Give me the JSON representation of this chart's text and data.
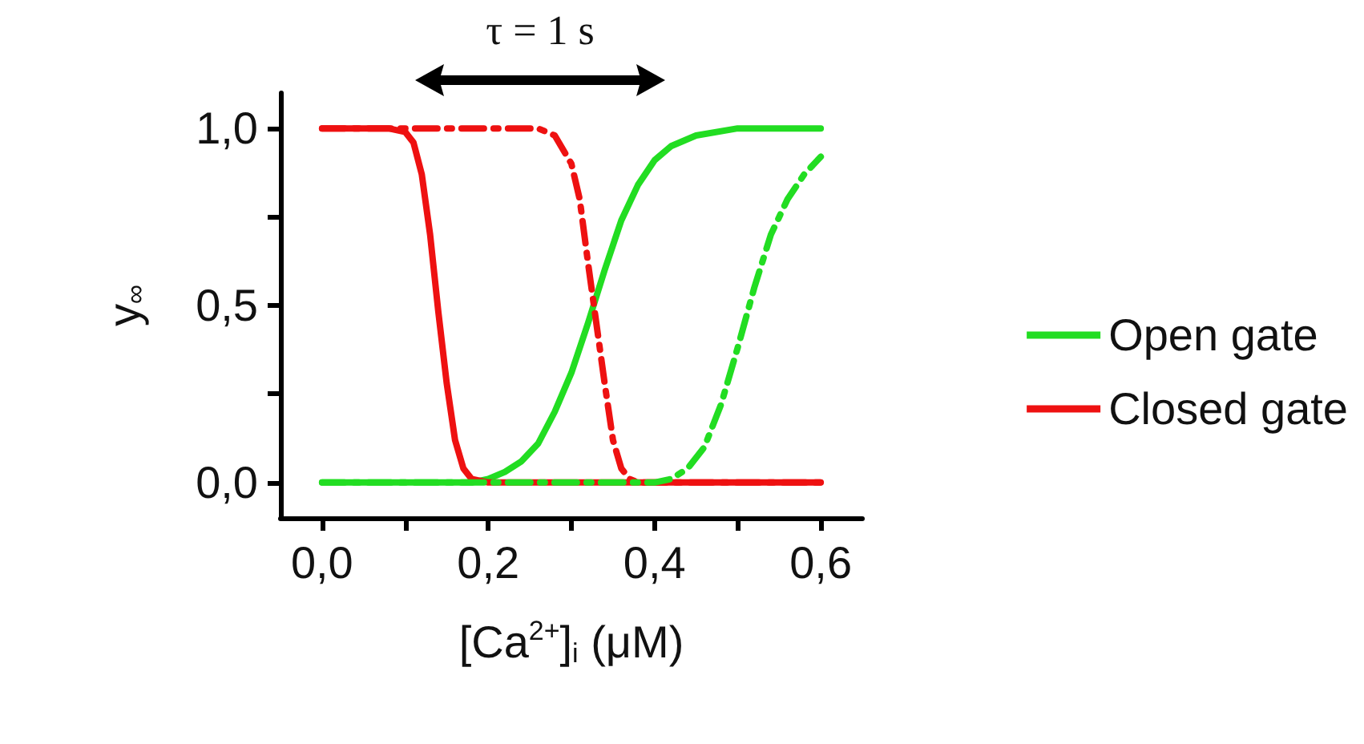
{
  "chart_data": {
    "type": "line",
    "xlabel": "[Ca$^{2+}$]$_{i}$ (μM)",
    "ylabel": "y$_{∞}$",
    "xlim": [
      -0.05,
      0.65
    ],
    "xticks": [
      {
        "value": 0,
        "label": "0,0"
      },
      {
        "value": 0.1,
        "label": null
      },
      {
        "value": 0.2,
        "label": "0,2"
      },
      {
        "value": 0.3,
        "label": null
      },
      {
        "value": 0.4,
        "label": "0,4"
      },
      {
        "value": 0.5,
        "label": null
      },
      {
        "value": 0.6,
        "label": "0,6"
      }
    ],
    "ylim": [
      -0.1,
      1.1
    ],
    "yticks": [
      {
        "value": 0,
        "label": "0,0"
      },
      {
        "value": 0.25,
        "label": null
      },
      {
        "value": 0.5,
        "label": "0,5"
      },
      {
        "value": 0.75,
        "label": null
      },
      {
        "value": 1,
        "label": "1,0"
      }
    ],
    "grid": false,
    "legend": "right",
    "marker": "none",
    "annotations": [
      "τ = 1 s"
    ],
    "series": [
      {
        "name": "Open gate",
        "color": "#22dd22",
        "line_style": "solid",
        "x": [
          0,
          0.18,
          0.2,
          0.22,
          0.24,
          0.26,
          0.28,
          0.3,
          0.32,
          0.34,
          0.36,
          0.38,
          0.4,
          0.42,
          0.45,
          0.5,
          0.6
        ],
        "values": [
          0,
          0,
          0.01,
          0.03,
          0.06,
          0.11,
          0.2,
          0.31,
          0.45,
          0.6,
          0.74,
          0.84,
          0.91,
          0.95,
          0.98,
          1,
          1
        ]
      },
      {
        "name": "Closed gate",
        "color": "#ee1111",
        "line_style": "solid",
        "x": [
          0,
          0.08,
          0.1,
          0.11,
          0.12,
          0.13,
          0.14,
          0.15,
          0.16,
          0.17,
          0.18,
          0.2,
          0.6
        ],
        "values": [
          1,
          1,
          0.99,
          0.96,
          0.87,
          0.7,
          0.48,
          0.28,
          0.12,
          0.04,
          0.01,
          0,
          0
        ]
      },
      {
        "color": "#ee1111",
        "line_style": "dashed",
        "x": [
          0,
          0.26,
          0.28,
          0.3,
          0.31,
          0.32,
          0.33,
          0.34,
          0.35,
          0.36,
          0.37,
          0.38,
          0.6
        ],
        "values": [
          1,
          1,
          0.98,
          0.9,
          0.8,
          0.62,
          0.45,
          0.28,
          0.12,
          0.04,
          0.01,
          0,
          0
        ]
      },
      {
        "color": "#22dd22",
        "line_style": "dashed",
        "x": [
          0,
          0.4,
          0.42,
          0.44,
          0.46,
          0.48,
          0.5,
          0.52,
          0.54,
          0.56,
          0.58,
          0.6
        ],
        "values": [
          0,
          0,
          0.01,
          0.04,
          0.1,
          0.22,
          0.38,
          0.55,
          0.7,
          0.8,
          0.87,
          0.92
        ]
      }
    ]
  }
}
